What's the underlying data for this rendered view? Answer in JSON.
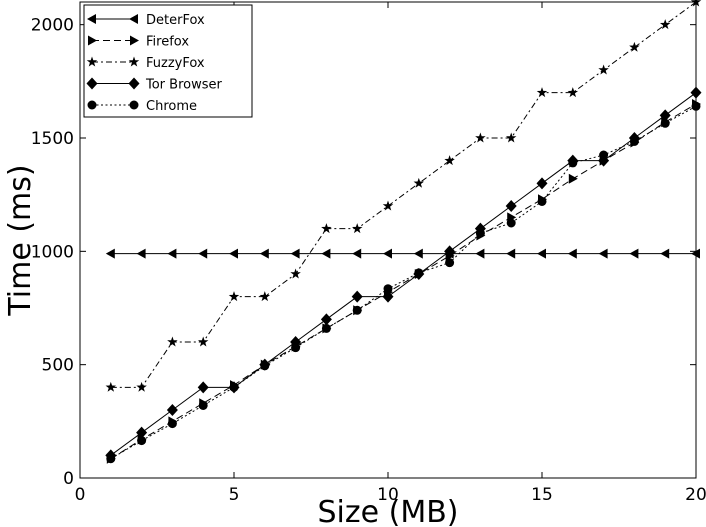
{
  "chart_data": {
    "type": "line",
    "xlabel": "Size (MB)",
    "ylabel": "Time (ms)",
    "xlim": [
      0,
      20
    ],
    "ylim": [
      0,
      2100
    ],
    "x_ticks": [
      0,
      5,
      10,
      15,
      20
    ],
    "y_ticks": [
      0,
      500,
      1000,
      1500,
      2000
    ],
    "grid": false,
    "legend_position": "top-left",
    "x": [
      1,
      2,
      3,
      4,
      5,
      6,
      7,
      8,
      9,
      10,
      11,
      12,
      13,
      14,
      15,
      16,
      17,
      18,
      19,
      20
    ],
    "series": [
      {
        "name": "DeterFox",
        "marker": "triangle-left",
        "dash": "solid",
        "values": [
          990,
          990,
          990,
          990,
          990,
          990,
          990,
          990,
          990,
          990,
          990,
          990,
          990,
          990,
          990,
          990,
          990,
          990,
          990,
          990
        ]
      },
      {
        "name": "Firefox",
        "marker": "triangle-right",
        "dash": "dashed",
        "values": [
          85,
          170,
          250,
          330,
          410,
          500,
          580,
          660,
          740,
          820,
          900,
          980,
          1070,
          1150,
          1230,
          1320,
          1400,
          1480,
          1570,
          1650
        ]
      },
      {
        "name": "FuzzyFox",
        "marker": "star",
        "dash": "dashdot",
        "values": [
          400,
          400,
          600,
          600,
          800,
          800,
          900,
          1100,
          1100,
          1200,
          1300,
          1400,
          1500,
          1500,
          1700,
          1700,
          1800,
          1900,
          2000,
          2100
        ]
      },
      {
        "name": "Tor Browser",
        "marker": "diamond",
        "dash": "solid",
        "values": [
          100,
          200,
          300,
          400,
          400,
          500,
          600,
          700,
          800,
          800,
          900,
          1000,
          1100,
          1200,
          1300,
          1400,
          1400,
          1500,
          1600,
          1700
        ]
      },
      {
        "name": "Chrome",
        "marker": "circle",
        "dash": "dotted",
        "values": [
          85,
          165,
          240,
          320,
          400,
          495,
          575,
          660,
          740,
          835,
          905,
          950,
          1080,
          1125,
          1220,
          1390,
          1425,
          1485,
          1565,
          1640
        ]
      }
    ]
  }
}
